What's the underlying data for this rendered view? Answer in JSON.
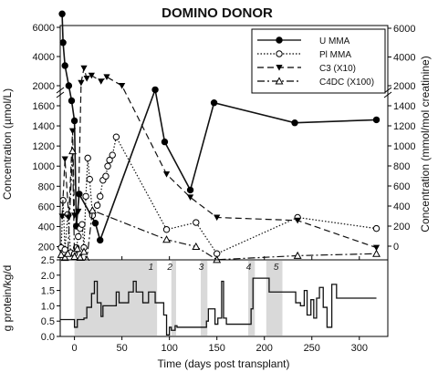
{
  "chart_data": [
    {
      "type": "line",
      "title": "DOMINO DONOR",
      "xlabel": "Time (days post transplant)",
      "ylabel_left": "Concentration (µmol/L)",
      "ylabel_right": "Concentration (mmol/mol creatinine)",
      "xlim": [
        -15,
        330
      ],
      "x_ticks": [
        "0",
        "50",
        "100",
        "150",
        "200",
        "250",
        "300"
      ],
      "x_tick_values": [
        0,
        50,
        100,
        150,
        200,
        250,
        300
      ],
      "left_ticks_upper": [
        "6000",
        "4000",
        "2000"
      ],
      "left_tick_values_upper": [
        6000,
        4000,
        2000
      ],
      "left_ticks_lower": [
        "1600",
        "1400",
        "1200",
        "1000",
        "800",
        "600",
        "400",
        "200"
      ],
      "left_tick_values_lower": [
        1600,
        1400,
        1200,
        1000,
        800,
        600,
        400,
        200
      ],
      "right_ticks_upper": [
        "6000",
        "4000",
        "2000"
      ],
      "right_tick_values_upper": [
        6000,
        4000,
        2000
      ],
      "right_ticks_lower": [
        "1400",
        "1200",
        "1000",
        "800",
        "600",
        "400",
        "200",
        "0"
      ],
      "right_tick_values_lower": [
        1400,
        1200,
        1000,
        800,
        600,
        400,
        200,
        0
      ],
      "axis_break": true,
      "legend_position": "top-right",
      "series": [
        {
          "name": "U MMA",
          "axis": "right",
          "style": "solid",
          "marker": "filled-circle",
          "color": "#111111",
          "points": [
            [
              -13,
              7000
            ],
            [
              -12,
              5000
            ],
            [
              -10,
              3400
            ],
            [
              -6,
              2000
            ],
            [
              -3,
              1450
            ],
            [
              0,
              1250
            ],
            [
              2,
              200
            ],
            [
              5,
              520
            ],
            [
              22,
              230
            ],
            [
              27,
              60
            ],
            [
              85,
              1560
            ],
            [
              95,
              1040
            ],
            [
              122,
              560
            ],
            [
              147,
              1430
            ],
            [
              232,
              1230
            ],
            [
              318,
              1260
            ]
          ]
        },
        {
          "name": "Pl MMA",
          "axis": "left",
          "style": "dotted",
          "marker": "open-circle",
          "color": "#111111",
          "points": [
            [
              -14,
              190
            ],
            [
              -12,
              660
            ],
            [
              -10,
              170
            ],
            [
              -7,
              520
            ],
            [
              -4,
              140
            ],
            [
              0,
              130
            ],
            [
              2,
              190
            ],
            [
              4,
              300
            ],
            [
              6,
              380
            ],
            [
              8,
              420
            ],
            [
              10,
              190
            ],
            [
              12,
              700
            ],
            [
              14,
              1080
            ],
            [
              16,
              870
            ],
            [
              19,
              510
            ],
            [
              24,
              610
            ],
            [
              27,
              700
            ],
            [
              30,
              860
            ],
            [
              33,
              900
            ],
            [
              35,
              1000
            ],
            [
              37,
              1060
            ],
            [
              40,
              1110
            ],
            [
              44,
              1290
            ],
            [
              97,
              370
            ],
            [
              128,
              440
            ],
            [
              150,
              130
            ],
            [
              235,
              490
            ],
            [
              318,
              380
            ]
          ]
        },
        {
          "name": "C3 (X10)",
          "axis": "left",
          "style": "dashed",
          "marker": "filled-triangle",
          "color": "#111111",
          "points": [
            [
              -13,
              500
            ],
            [
              -10,
              1070
            ],
            [
              -6,
              490
            ],
            [
              -2,
              1350
            ],
            [
              0,
              510
            ],
            [
              4,
              550
            ],
            [
              7,
              2200
            ],
            [
              10,
              3200
            ],
            [
              13,
              2500
            ],
            [
              18,
              2700
            ],
            [
              28,
              2300
            ],
            [
              34,
              2600
            ],
            [
              50,
              2000
            ],
            [
              97,
              920
            ],
            [
              122,
              690
            ],
            [
              150,
              490
            ],
            [
              235,
              460
            ],
            [
              318,
              190
            ]
          ]
        },
        {
          "name": "C4DC (X100)",
          "axis": "left",
          "style": "dash-dot",
          "marker": "open-triangle",
          "color": "#111111",
          "points": [
            [
              -14,
              120
            ],
            [
              -10,
              90
            ],
            [
              -7,
              130
            ],
            [
              -2,
              1150
            ],
            [
              0,
              100
            ],
            [
              3,
              180
            ],
            [
              6,
              90
            ],
            [
              10,
              150
            ],
            [
              13,
              70
            ],
            [
              19,
              560
            ],
            [
              97,
              270
            ],
            [
              128,
              200
            ],
            [
              150,
              70
            ],
            [
              235,
              110
            ],
            [
              318,
              130
            ]
          ]
        }
      ]
    },
    {
      "type": "line",
      "ylabel": "g protein/kg/d",
      "xlim": [
        -15,
        330
      ],
      "ylim": [
        0,
        2.5
      ],
      "y_ticks": [
        "0.0",
        "0.5",
        "1.0",
        "1.5",
        "2.0",
        "2.5"
      ],
      "y_tick_values": [
        0,
        0.5,
        1.0,
        1.5,
        2.0,
        2.5
      ],
      "shaded_periods": [
        {
          "label": "1",
          "x0": 0,
          "x1": 87
        },
        {
          "label": "2",
          "x0": 102,
          "x1": 107
        },
        {
          "label": "3",
          "x0": 133,
          "x1": 140
        },
        {
          "label": "4",
          "x0": 183,
          "x1": 190
        },
        {
          "label": "5",
          "x0": 202,
          "x1": 219
        }
      ],
      "series": [
        {
          "name": "protein intake",
          "color": "#111111",
          "points": [
            [
              -15,
              0.55
            ],
            [
              0,
              0.55
            ],
            [
              0,
              0.3
            ],
            [
              3,
              0.3
            ],
            [
              3,
              0.55
            ],
            [
              10,
              0.55
            ],
            [
              10,
              0.6
            ],
            [
              13,
              0.6
            ],
            [
              13,
              0.95
            ],
            [
              18,
              0.95
            ],
            [
              18,
              1.4
            ],
            [
              21,
              1.4
            ],
            [
              21,
              1.8
            ],
            [
              24,
              1.8
            ],
            [
              24,
              1.1
            ],
            [
              28,
              1.1
            ],
            [
              28,
              0.65
            ],
            [
              30,
              0.65
            ],
            [
              30,
              1.0
            ],
            [
              44,
              1.0
            ],
            [
              44,
              1.45
            ],
            [
              47,
              1.45
            ],
            [
              47,
              1.1
            ],
            [
              57,
              1.1
            ],
            [
              57,
              1.45
            ],
            [
              62,
              1.45
            ],
            [
              62,
              1.8
            ],
            [
              65,
              1.8
            ],
            [
              65,
              1.45
            ],
            [
              72,
              1.45
            ],
            [
              72,
              1.1
            ],
            [
              78,
              1.1
            ],
            [
              78,
              1.45
            ],
            [
              85,
              1.45
            ],
            [
              85,
              1.1
            ],
            [
              94,
              1.1
            ],
            [
              94,
              0.7
            ],
            [
              97,
              0.7
            ],
            [
              97,
              0.05
            ],
            [
              100,
              0.05
            ],
            [
              100,
              0.3
            ],
            [
              102,
              0.3
            ],
            [
              102,
              0.2
            ],
            [
              106,
              0.2
            ],
            [
              106,
              0.35
            ],
            [
              108,
              0.35
            ],
            [
              108,
              0.3
            ],
            [
              139,
              0.3
            ],
            [
              139,
              0.5
            ],
            [
              141,
              0.5
            ],
            [
              141,
              0.9
            ],
            [
              148,
              0.9
            ],
            [
              148,
              0.4
            ],
            [
              151,
              0.4
            ],
            [
              151,
              0.6
            ],
            [
              155,
              0.6
            ],
            [
              155,
              1.8
            ],
            [
              157,
              1.8
            ],
            [
              157,
              0.6
            ],
            [
              160,
              0.6
            ],
            [
              160,
              0.4
            ],
            [
              186,
              0.4
            ],
            [
              186,
              0.9
            ],
            [
              188,
              0.9
            ],
            [
              188,
              1.9
            ],
            [
              205,
              1.9
            ],
            [
              205,
              1.45
            ],
            [
              233,
              1.45
            ],
            [
              233,
              1.1
            ],
            [
              238,
              1.1
            ],
            [
              238,
              1.0
            ],
            [
              242,
              1.0
            ],
            [
              242,
              1.5
            ],
            [
              245,
              1.5
            ],
            [
              245,
              0.7
            ],
            [
              249,
              0.7
            ],
            [
              249,
              1.2
            ],
            [
              252,
              1.2
            ],
            [
              252,
              0.6
            ],
            [
              255,
              0.6
            ],
            [
              255,
              1.25
            ],
            [
              258,
              1.25
            ],
            [
              258,
              1.6
            ],
            [
              262,
              1.6
            ],
            [
              262,
              0.95
            ],
            [
              266,
              0.95
            ],
            [
              266,
              0.3
            ],
            [
              271,
              0.3
            ],
            [
              271,
              1.7
            ],
            [
              276,
              1.7
            ],
            [
              276,
              1.25
            ],
            [
              318,
              1.25
            ]
          ]
        }
      ]
    }
  ]
}
